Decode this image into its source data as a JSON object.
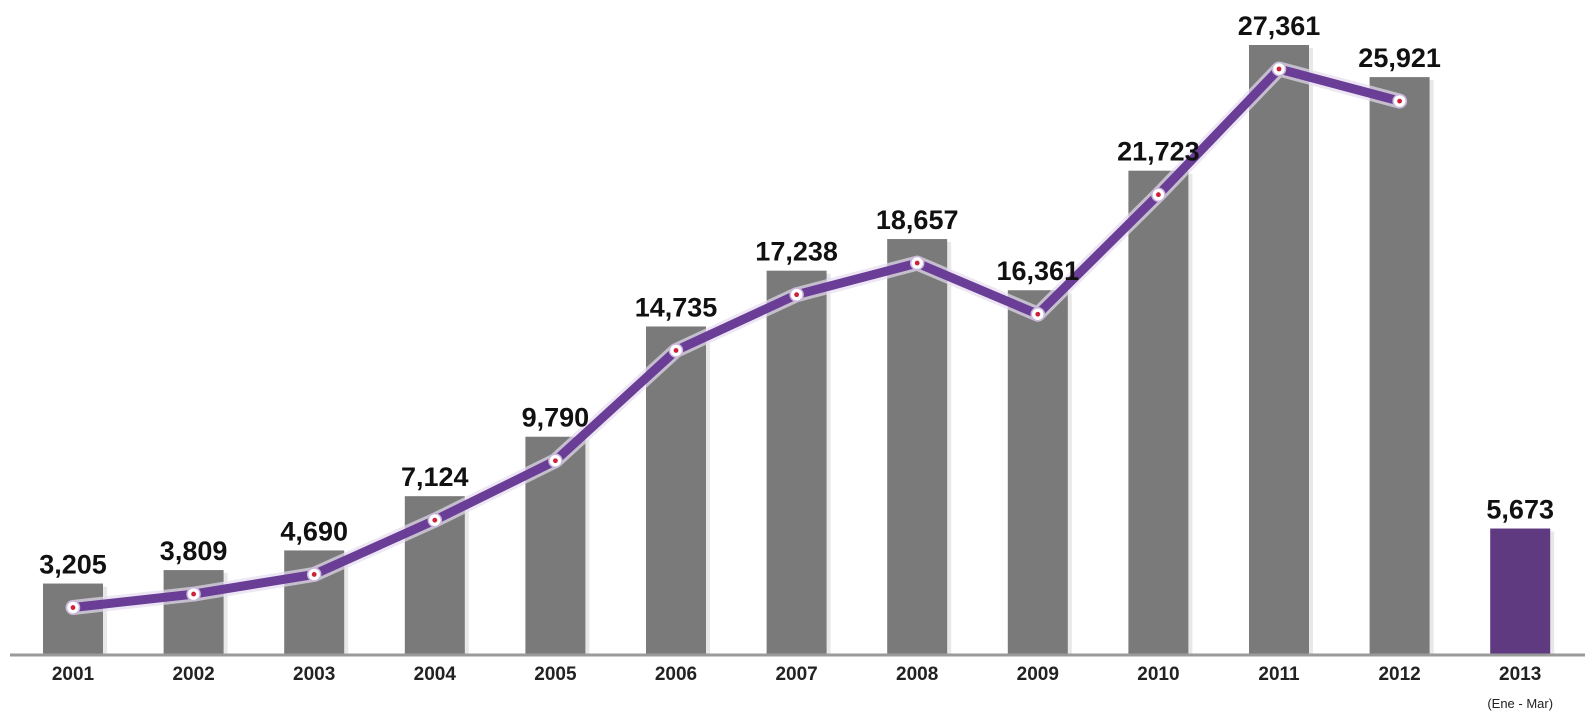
{
  "chart_data": {
    "type": "bar",
    "categories": [
      "2001",
      "2002",
      "2003",
      "2004",
      "2005",
      "2006",
      "2007",
      "2008",
      "2009",
      "2010",
      "2011",
      "2012",
      "2013"
    ],
    "values": [
      3205,
      3809,
      4690,
      7124,
      9790,
      14735,
      17238,
      18657,
      16361,
      21723,
      27361,
      25921,
      5673
    ],
    "value_labels": [
      "3,205",
      "3,809",
      "4,690",
      "7,124",
      "9,790",
      "14,735",
      "17,238",
      "18,657",
      "16,361",
      "21,723",
      "27,361",
      "25,921",
      "5,673"
    ],
    "category_note": {
      "category": "2013",
      "text": "(Ene - Mar)"
    },
    "line_overlay": {
      "type": "line",
      "categories": [
        "2001",
        "2002",
        "2003",
        "2004",
        "2005",
        "2006",
        "2007",
        "2008",
        "2009",
        "2010",
        "2011",
        "2012"
      ],
      "values": [
        3205,
        3809,
        4690,
        7124,
        9790,
        14735,
        17238,
        18657,
        16361,
        21723,
        27361,
        25921
      ]
    },
    "title": "",
    "xlabel": "",
    "ylabel": "",
    "ylim": [
      0,
      28000
    ],
    "grid": false,
    "legend": "none",
    "colors": {
      "bar": "#7a7a7a",
      "highlight_bar": "#5f3a80",
      "line": "#6a3d96",
      "marker_fill": "#ffffff",
      "marker_dot": "#d0203a",
      "axis": "#9a9a9a"
    }
  }
}
